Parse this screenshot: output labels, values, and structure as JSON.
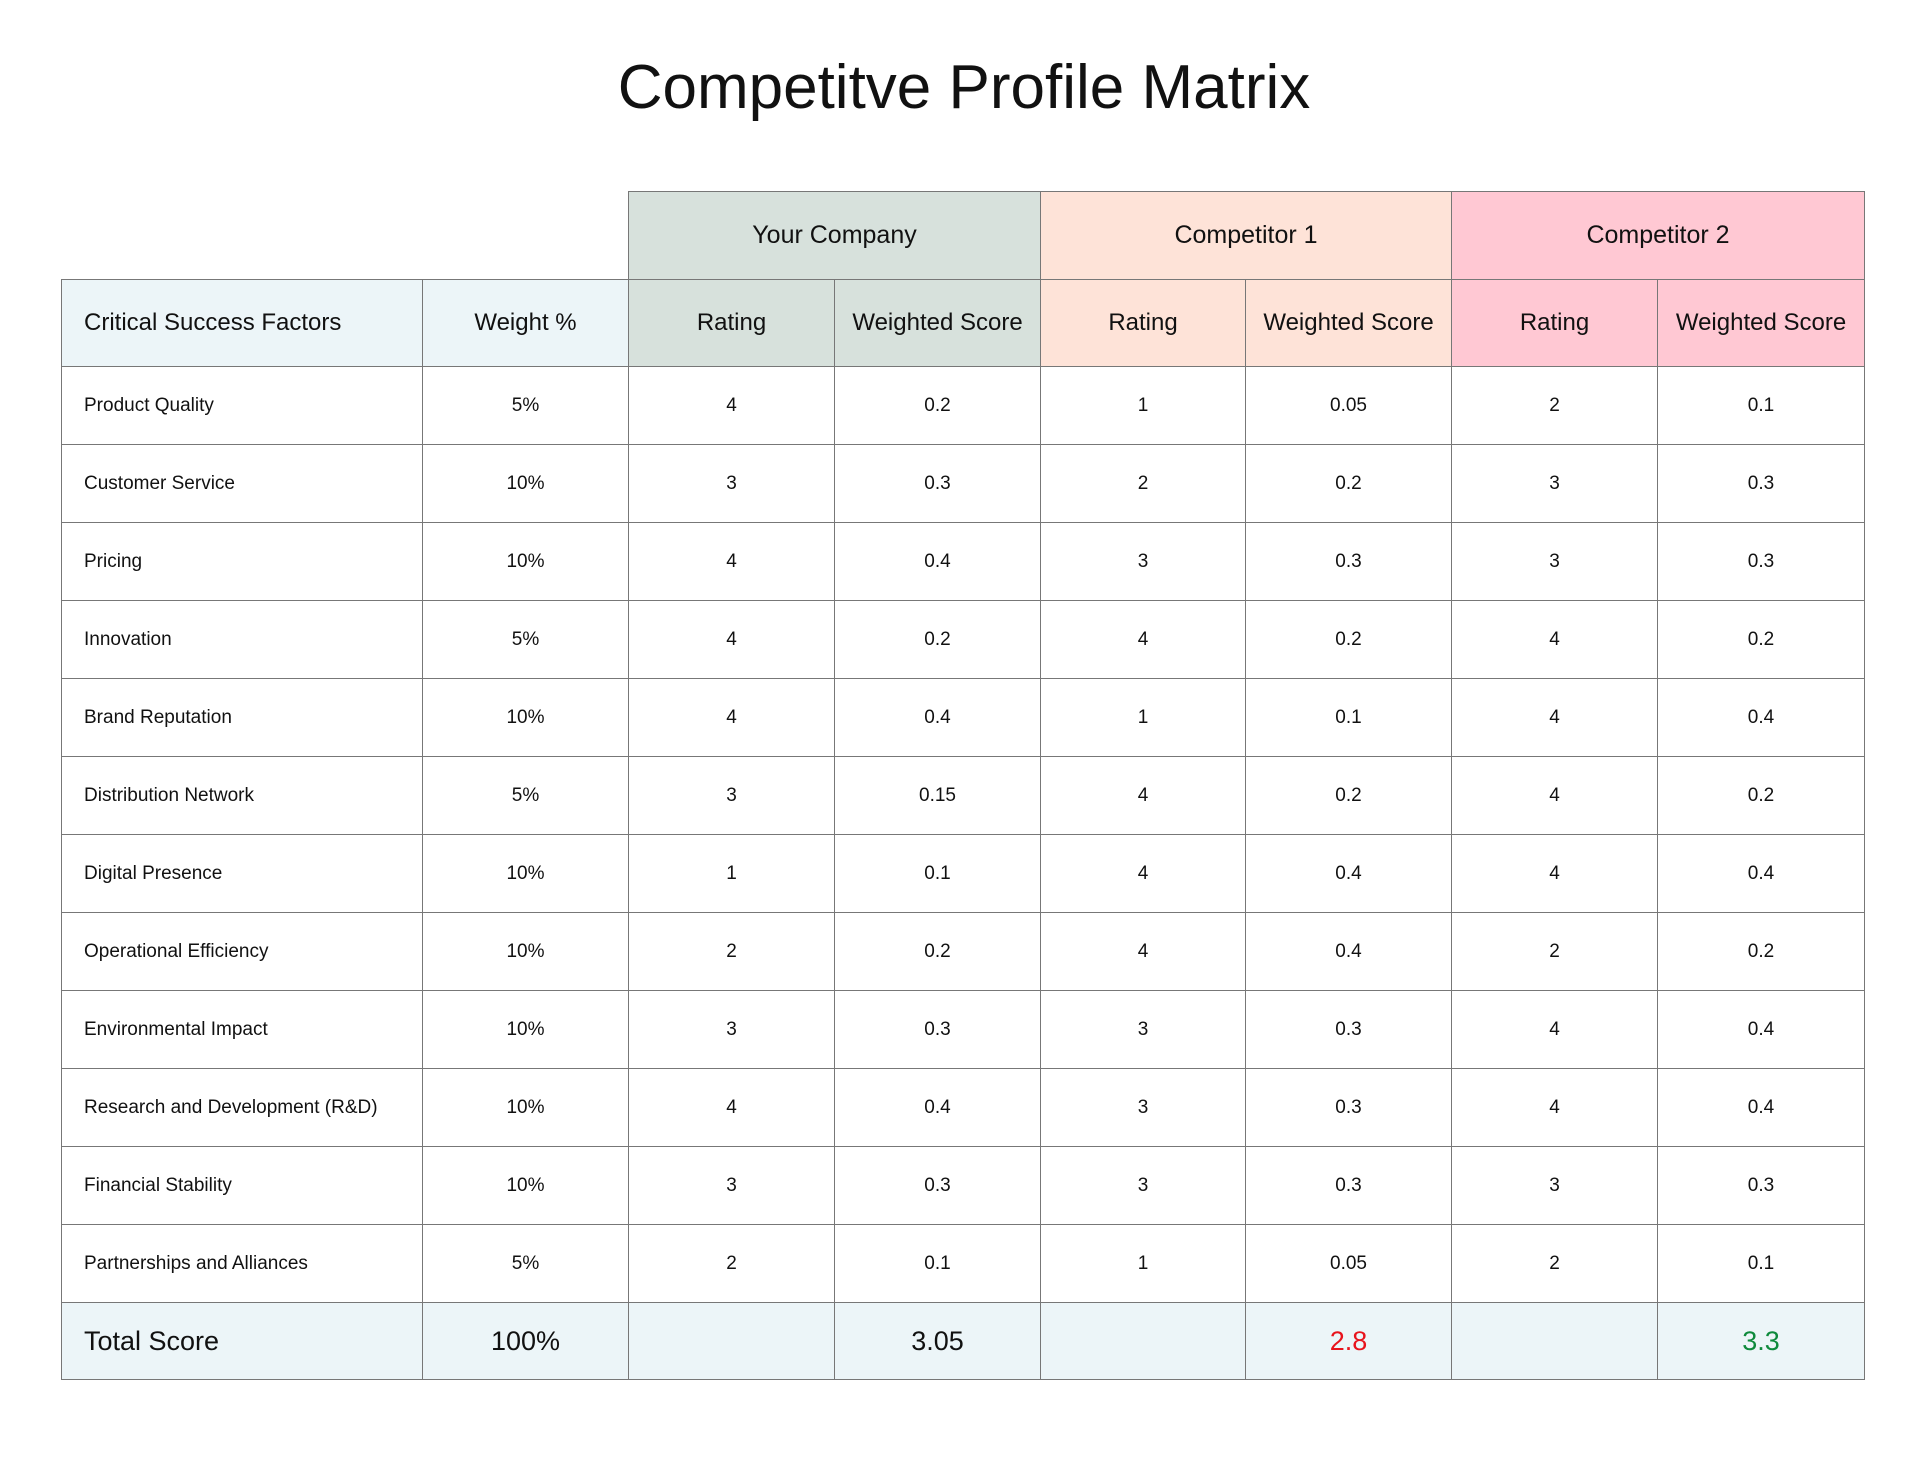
{
  "title": "Competitve Profile Matrix",
  "groups": [
    "Your Company",
    "Competitor 1",
    "Competitor 2"
  ],
  "columns": [
    "Critical Success Factors",
    "Weight %",
    "Rating",
    "Weighted Score",
    "Rating",
    "Weighted Score",
    "Rating",
    "Weighted Score"
  ],
  "rows": [
    [
      "Product Quality",
      "5%",
      "4",
      "0.2",
      "1",
      "0.05",
      "2",
      "0.1"
    ],
    [
      "Customer Service",
      "10%",
      "3",
      "0.3",
      "2",
      "0.2",
      "3",
      "0.3"
    ],
    [
      "Pricing",
      "10%",
      "4",
      "0.4",
      "3",
      "0.3",
      "3",
      "0.3"
    ],
    [
      "Innovation",
      "5%",
      "4",
      "0.2",
      "4",
      "0.2",
      "4",
      "0.2"
    ],
    [
      "Brand Reputation",
      "10%",
      "4",
      "0.4",
      "1",
      "0.1",
      "4",
      "0.4"
    ],
    [
      "Distribution Network",
      "5%",
      "3",
      "0.15",
      "4",
      "0.2",
      "4",
      "0.2"
    ],
    [
      "Digital Presence",
      "10%",
      "1",
      "0.1",
      "4",
      "0.4",
      "4",
      "0.4"
    ],
    [
      "Operational Efficiency",
      "10%",
      "2",
      "0.2",
      "4",
      "0.4",
      "2",
      "0.2"
    ],
    [
      "Environmental Impact",
      "10%",
      "3",
      "0.3",
      "3",
      "0.3",
      "4",
      "0.4"
    ],
    [
      "Research and Development (R&D)",
      "10%",
      "4",
      "0.4",
      "3",
      "0.3",
      "4",
      "0.4"
    ],
    [
      "Financial Stability",
      "10%",
      "3",
      "0.3",
      "3",
      "0.3",
      "3",
      "0.3"
    ],
    [
      "Partnerships and Alliances",
      "5%",
      "2",
      "0.1",
      "1",
      "0.05",
      "2",
      "0.1"
    ]
  ],
  "total": {
    "label": "Total Score",
    "weight": "100%",
    "scores": [
      "3.05",
      "2.8",
      "3.3"
    ]
  }
}
